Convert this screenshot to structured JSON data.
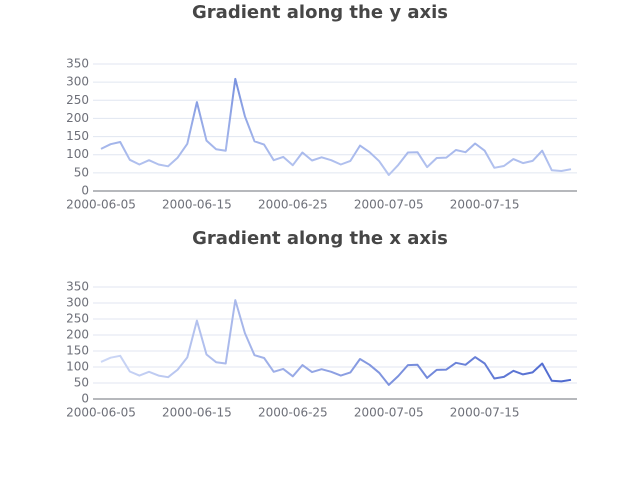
{
  "chart_data": [
    {
      "type": "line",
      "title": "Gradient along the y axis",
      "categories": [
        "2000-06-05",
        null,
        null,
        null,
        null,
        null,
        null,
        null,
        null,
        null,
        "2000-06-15",
        null,
        null,
        null,
        null,
        null,
        null,
        null,
        null,
        null,
        "2000-06-25",
        null,
        null,
        null,
        null,
        null,
        null,
        null,
        null,
        null,
        "2000-07-05",
        null,
        null,
        null,
        null,
        null,
        null,
        null,
        null,
        null,
        "2000-07-15",
        null,
        null,
        null,
        null,
        null,
        null,
        null,
        null,
        null
      ],
      "values": [
        116,
        129,
        135,
        86,
        73,
        85,
        73,
        68,
        92,
        130,
        245,
        139,
        115,
        111,
        309,
        206,
        137,
        128,
        85,
        94,
        71,
        106,
        84,
        93,
        85,
        73,
        83,
        125,
        107,
        82,
        44,
        72,
        106,
        107,
        66,
        91,
        92,
        113,
        107,
        131,
        111,
        64,
        69,
        88,
        77,
        83,
        111,
        57,
        55,
        60
      ],
      "ylim": [
        0,
        350
      ],
      "yticks": [
        0,
        50,
        100,
        150,
        200,
        250,
        300,
        350
      ],
      "grid": true,
      "gradient": {
        "axis": "y",
        "colors": [
          "#c2cff3",
          "#6f89dc"
        ]
      }
    },
    {
      "type": "line",
      "title": "Gradient along the x axis",
      "categories": [
        "2000-06-05",
        null,
        null,
        null,
        null,
        null,
        null,
        null,
        null,
        null,
        "2000-06-15",
        null,
        null,
        null,
        null,
        null,
        null,
        null,
        null,
        null,
        "2000-06-25",
        null,
        null,
        null,
        null,
        null,
        null,
        null,
        null,
        null,
        "2000-07-05",
        null,
        null,
        null,
        null,
        null,
        null,
        null,
        null,
        null,
        "2000-07-15",
        null,
        null,
        null,
        null,
        null,
        null,
        null,
        null,
        null
      ],
      "values": [
        116,
        129,
        135,
        86,
        73,
        85,
        73,
        68,
        92,
        130,
        245,
        139,
        115,
        111,
        309,
        206,
        137,
        128,
        85,
        94,
        71,
        106,
        84,
        93,
        85,
        73,
        83,
        125,
        107,
        82,
        44,
        72,
        106,
        107,
        66,
        91,
        92,
        113,
        107,
        131,
        111,
        64,
        69,
        88,
        77,
        83,
        111,
        57,
        55,
        60
      ],
      "ylim": [
        0,
        350
      ],
      "yticks": [
        0,
        50,
        100,
        150,
        200,
        250,
        300,
        350
      ],
      "grid": true,
      "gradient": {
        "axis": "x",
        "colors": [
          "#cdd8f6",
          "#4d68cf"
        ]
      }
    }
  ]
}
